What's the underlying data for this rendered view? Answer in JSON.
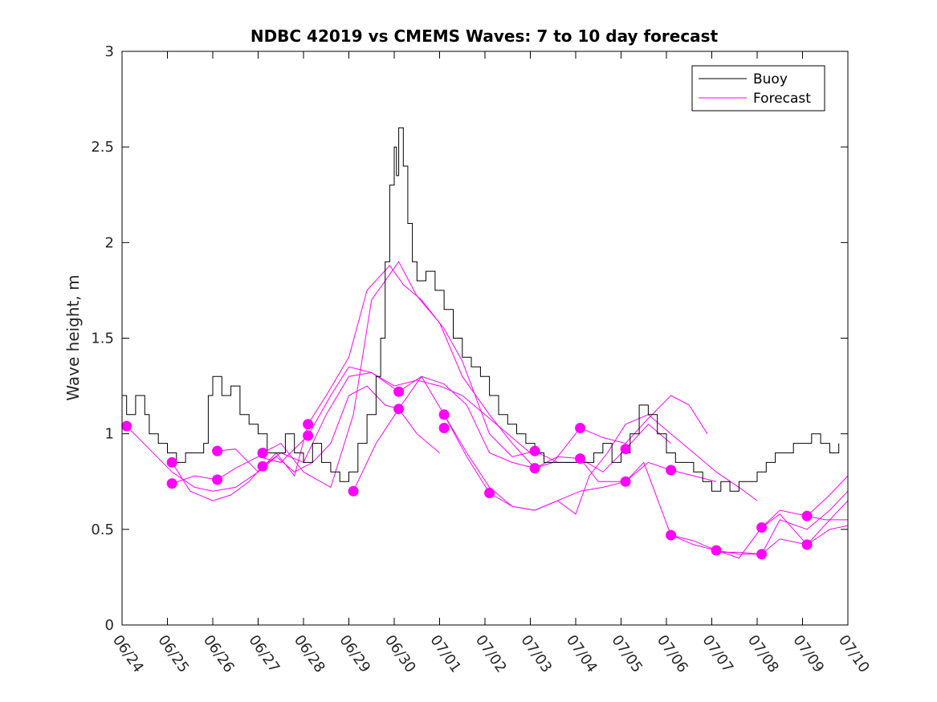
{
  "chart_data": {
    "type": "line",
    "title": "NDBC 42019 vs CMEMS Waves: 7 to 10 day forecast",
    "xlabel": "",
    "ylabel": "Wave height, m",
    "ylim": [
      0,
      3
    ],
    "yticks": [
      "0",
      "0.5",
      "1",
      "1.5",
      "2",
      "2.5",
      "3"
    ],
    "xlim": [
      "06/24",
      "07/10"
    ],
    "xticks": [
      "06/24",
      "06/25",
      "06/26",
      "06/27",
      "06/28",
      "06/29",
      "06/30",
      "07/01",
      "07/02",
      "07/03",
      "07/04",
      "07/05",
      "07/06",
      "07/07",
      "07/08",
      "07/09",
      "07/10"
    ],
    "grid": false,
    "legend": {
      "position": "top-right",
      "entries": [
        "Buoy",
        "Forecast"
      ]
    },
    "colors": {
      "buoy": "#000000",
      "forecast": "#ff00ff"
    },
    "series": [
      {
        "name": "Buoy",
        "color": "#000000",
        "points": [
          [
            0,
            1.2
          ],
          [
            0.1,
            1.1
          ],
          [
            0.3,
            1.2
          ],
          [
            0.5,
            1.1
          ],
          [
            0.6,
            1.0
          ],
          [
            0.8,
            0.95
          ],
          [
            1.0,
            0.9
          ],
          [
            1.2,
            0.85
          ],
          [
            1.4,
            0.9
          ],
          [
            1.6,
            0.9
          ],
          [
            1.8,
            0.95
          ],
          [
            1.9,
            1.2
          ],
          [
            2.0,
            1.3
          ],
          [
            2.2,
            1.2
          ],
          [
            2.4,
            1.25
          ],
          [
            2.6,
            1.1
          ],
          [
            2.8,
            1.05
          ],
          [
            3.0,
            1.0
          ],
          [
            3.2,
            0.9
          ],
          [
            3.4,
            0.9
          ],
          [
            3.6,
            1.0
          ],
          [
            3.8,
            0.9
          ],
          [
            4.0,
            0.85
          ],
          [
            4.2,
            0.95
          ],
          [
            4.4,
            0.85
          ],
          [
            4.6,
            0.8
          ],
          [
            4.8,
            0.75
          ],
          [
            5.0,
            0.8
          ],
          [
            5.2,
            0.95
          ],
          [
            5.4,
            1.1
          ],
          [
            5.6,
            1.3
          ],
          [
            5.7,
            1.5
          ],
          [
            5.8,
            1.9
          ],
          [
            5.9,
            2.3
          ],
          [
            6.0,
            2.5
          ],
          [
            6.05,
            2.35
          ],
          [
            6.1,
            2.6
          ],
          [
            6.2,
            2.4
          ],
          [
            6.3,
            2.1
          ],
          [
            6.4,
            1.9
          ],
          [
            6.5,
            1.8
          ],
          [
            6.7,
            1.85
          ],
          [
            6.9,
            1.75
          ],
          [
            7.1,
            1.65
          ],
          [
            7.3,
            1.5
          ],
          [
            7.5,
            1.4
          ],
          [
            7.7,
            1.35
          ],
          [
            7.9,
            1.3
          ],
          [
            8.1,
            1.2
          ],
          [
            8.3,
            1.1
          ],
          [
            8.5,
            1.05
          ],
          [
            8.7,
            1.0
          ],
          [
            8.9,
            0.95
          ],
          [
            9.1,
            0.9
          ],
          [
            9.3,
            0.85
          ],
          [
            9.6,
            0.85
          ],
          [
            9.9,
            0.85
          ],
          [
            10.2,
            0.85
          ],
          [
            10.4,
            0.9
          ],
          [
            10.6,
            0.95
          ],
          [
            10.8,
            0.85
          ],
          [
            11.0,
            0.9
          ],
          [
            11.2,
            1.0
          ],
          [
            11.4,
            1.15
          ],
          [
            11.6,
            1.1
          ],
          [
            11.8,
            1.0
          ],
          [
            12.0,
            0.9
          ],
          [
            12.2,
            0.85
          ],
          [
            12.4,
            0.85
          ],
          [
            12.6,
            0.8
          ],
          [
            12.8,
            0.75
          ],
          [
            13.0,
            0.7
          ],
          [
            13.2,
            0.75
          ],
          [
            13.4,
            0.7
          ],
          [
            13.6,
            0.75
          ],
          [
            13.8,
            0.75
          ],
          [
            14.0,
            0.8
          ],
          [
            14.2,
            0.85
          ],
          [
            14.4,
            0.9
          ],
          [
            14.6,
            0.9
          ],
          [
            14.8,
            0.95
          ],
          [
            15.0,
            0.95
          ],
          [
            15.2,
            1.0
          ],
          [
            15.4,
            0.95
          ],
          [
            15.6,
            0.9
          ],
          [
            15.8,
            0.95
          ]
        ]
      },
      {
        "name": "Forecast",
        "color": "#ff00ff",
        "points": [
          [
            0.1,
            1.04
          ],
          [
            0.6,
            0.92
          ],
          [
            1.1,
            0.8
          ],
          [
            1.6,
            0.72
          ],
          [
            2.0,
            0.7
          ],
          [
            2.5,
            0.72
          ],
          [
            3.0,
            0.8
          ],
          [
            3.4,
            0.88
          ],
          [
            3.8,
            0.8
          ],
          [
            4.2,
            0.85
          ],
          [
            4.6,
            0.95
          ],
          [
            5.0,
            1.2
          ],
          [
            5.4,
            1.25
          ],
          [
            5.8,
            1.15
          ],
          [
            6.1,
            1.13
          ],
          [
            6.5,
            1.0
          ],
          [
            7.0,
            0.9
          ]
        ]
      },
      {
        "name": "Forecast",
        "color": "#ff00ff",
        "points": [
          [
            1.1,
            0.85
          ],
          [
            1.5,
            0.7
          ],
          [
            2.0,
            0.65
          ],
          [
            2.4,
            0.68
          ],
          [
            2.8,
            0.75
          ],
          [
            3.1,
            0.83
          ],
          [
            3.5,
            0.9
          ],
          [
            4.0,
            0.85
          ],
          [
            4.5,
            1.1
          ],
          [
            5.0,
            1.3
          ],
          [
            5.5,
            1.32
          ],
          [
            6.0,
            1.25
          ],
          [
            6.5,
            1.28
          ],
          [
            7.0,
            1.25
          ],
          [
            7.5,
            1.2
          ],
          [
            8.0,
            1.1
          ],
          [
            8.5,
            1.0
          ],
          [
            9.0,
            0.9
          ]
        ]
      },
      {
        "name": "Forecast",
        "color": "#ff00ff",
        "points": [
          [
            1.1,
            0.74
          ],
          [
            1.6,
            0.78
          ],
          [
            2.1,
            0.76
          ],
          [
            2.5,
            0.82
          ],
          [
            3.0,
            0.88
          ],
          [
            3.5,
            0.85
          ],
          [
            4.1,
            0.99
          ],
          [
            4.6,
            1.2
          ],
          [
            5.0,
            1.35
          ],
          [
            5.5,
            1.32
          ],
          [
            6.1,
            1.22
          ],
          [
            6.6,
            1.3
          ],
          [
            7.1,
            1.26
          ],
          [
            7.6,
            1.15
          ],
          [
            8.1,
            0.9
          ],
          [
            8.6,
            0.85
          ],
          [
            9.1,
            0.82
          ]
        ]
      },
      {
        "name": "Forecast",
        "color": "#ff00ff",
        "points": [
          [
            2.1,
            0.91
          ],
          [
            2.5,
            0.92
          ],
          [
            3.0,
            0.8
          ],
          [
            3.4,
            0.9
          ],
          [
            3.8,
            0.78
          ],
          [
            4.1,
            1.05
          ],
          [
            4.5,
            1.2
          ],
          [
            5.0,
            1.4
          ],
          [
            5.4,
            1.75
          ],
          [
            5.9,
            1.88
          ],
          [
            6.2,
            1.78
          ],
          [
            6.6,
            1.7
          ],
          [
            7.1,
            1.55
          ],
          [
            7.5,
            1.38
          ],
          [
            8.1,
            1.0
          ],
          [
            8.6,
            0.88
          ],
          [
            9.1,
            0.91
          ],
          [
            9.6,
            0.85
          ],
          [
            10.1,
            0.85
          ]
        ]
      },
      {
        "name": "Forecast",
        "color": "#ff00ff",
        "points": [
          [
            3.1,
            0.9
          ],
          [
            3.5,
            0.95
          ],
          [
            4.0,
            0.8
          ],
          [
            4.6,
            0.72
          ],
          [
            5.1,
            1.1
          ],
          [
            5.5,
            1.7
          ],
          [
            6.1,
            1.9
          ],
          [
            6.5,
            1.72
          ],
          [
            7.0,
            1.58
          ],
          [
            7.5,
            1.3
          ],
          [
            8.1,
            1.1
          ],
          [
            8.6,
            0.95
          ],
          [
            9.1,
            0.82
          ],
          [
            9.6,
            0.88
          ],
          [
            10.1,
            0.87
          ],
          [
            10.6,
            0.8
          ],
          [
            11.1,
            0.92
          ],
          [
            11.6,
            1.05
          ],
          [
            12.1,
            0.95
          ]
        ]
      },
      {
        "name": "Forecast",
        "color": "#ff00ff",
        "points": [
          [
            5.1,
            0.7
          ],
          [
            5.6,
            0.95
          ],
          [
            6.1,
            1.13
          ],
          [
            6.6,
            1.3
          ],
          [
            7.1,
            1.1
          ],
          [
            7.6,
            0.88
          ],
          [
            8.1,
            0.69
          ],
          [
            8.6,
            0.62
          ],
          [
            9.1,
            0.6
          ],
          [
            9.6,
            0.65
          ],
          [
            10.1,
            0.7
          ],
          [
            10.6,
            0.72
          ],
          [
            11.1,
            0.75
          ],
          [
            11.6,
            0.85
          ],
          [
            12.1,
            0.81
          ],
          [
            12.6,
            0.78
          ],
          [
            13.1,
            0.75
          ]
        ]
      },
      {
        "name": "Forecast",
        "color": "#ff00ff",
        "points": [
          [
            7.1,
            1.1
          ],
          [
            7.6,
            0.9
          ],
          [
            8.1,
            0.72
          ],
          [
            8.6,
            0.62
          ],
          [
            9.1,
            0.6
          ],
          [
            9.6,
            0.65
          ],
          [
            10.0,
            0.58
          ],
          [
            10.3,
            0.78
          ],
          [
            10.7,
            0.9
          ],
          [
            11.1,
            1.05
          ],
          [
            11.6,
            1.1
          ],
          [
            12.1,
            1.0
          ],
          [
            12.6,
            0.9
          ],
          [
            13.1,
            0.8
          ],
          [
            13.6,
            0.72
          ],
          [
            14.0,
            0.65
          ]
        ]
      },
      {
        "name": "Forecast",
        "color": "#ff00ff",
        "points": [
          [
            9.1,
            0.82
          ],
          [
            9.5,
            0.85
          ],
          [
            10.1,
            1.03
          ],
          [
            10.6,
            0.98
          ],
          [
            11.1,
            0.95
          ],
          [
            11.6,
            1.08
          ],
          [
            12.1,
            1.2
          ],
          [
            12.5,
            1.15
          ],
          [
            12.9,
            1.0
          ]
        ]
      },
      {
        "name": "Forecast",
        "color": "#ff00ff",
        "points": [
          [
            10.1,
            0.87
          ],
          [
            10.5,
            0.75
          ],
          [
            11.1,
            0.75
          ],
          [
            11.5,
            0.85
          ],
          [
            12.1,
            0.47
          ],
          [
            12.6,
            0.42
          ],
          [
            13.1,
            0.39
          ],
          [
            13.6,
            0.37
          ],
          [
            14.1,
            0.37
          ],
          [
            14.5,
            0.45
          ],
          [
            15.1,
            0.42
          ],
          [
            15.6,
            0.5
          ],
          [
            16.0,
            0.52
          ]
        ]
      },
      {
        "name": "Forecast",
        "color": "#ff00ff",
        "points": [
          [
            12.1,
            0.47
          ],
          [
            12.6,
            0.44
          ],
          [
            13.1,
            0.39
          ],
          [
            13.6,
            0.35
          ],
          [
            14.1,
            0.51
          ],
          [
            14.5,
            0.6
          ],
          [
            15.1,
            0.57
          ],
          [
            15.6,
            0.68
          ],
          [
            16.0,
            0.78
          ]
        ]
      },
      {
        "name": "Forecast",
        "color": "#ff00ff",
        "points": [
          [
            13.1,
            0.38
          ],
          [
            13.6,
            0.38
          ],
          [
            14.1,
            0.37
          ],
          [
            14.5,
            0.55
          ],
          [
            15.1,
            0.5
          ],
          [
            15.6,
            0.6
          ],
          [
            16.0,
            0.7
          ]
        ]
      },
      {
        "name": "Forecast",
        "color": "#ff00ff",
        "points": [
          [
            14.1,
            0.51
          ],
          [
            14.5,
            0.58
          ],
          [
            15.1,
            0.42
          ],
          [
            15.6,
            0.55
          ],
          [
            16.0,
            0.65
          ]
        ]
      },
      {
        "name": "Forecast",
        "color": "#ff00ff",
        "points": [
          [
            15.1,
            0.57
          ],
          [
            15.5,
            0.55
          ],
          [
            16.0,
            0.55
          ]
        ]
      }
    ],
    "forecast_start_points": [
      [
        0.1,
        1.04
      ],
      [
        1.1,
        0.85
      ],
      [
        1.1,
        0.74
      ],
      [
        2.1,
        0.91
      ],
      [
        2.1,
        0.76
      ],
      [
        3.1,
        0.9
      ],
      [
        3.1,
        0.83
      ],
      [
        4.1,
        1.05
      ],
      [
        4.1,
        0.99
      ],
      [
        5.1,
        0.7
      ],
      [
        6.1,
        1.22
      ],
      [
        6.1,
        1.13
      ],
      [
        7.1,
        1.1
      ],
      [
        7.1,
        1.03
      ],
      [
        8.1,
        0.69
      ],
      [
        9.1,
        0.91
      ],
      [
        9.1,
        0.82
      ],
      [
        10.1,
        1.03
      ],
      [
        10.1,
        0.87
      ],
      [
        11.1,
        0.92
      ],
      [
        11.1,
        0.75
      ],
      [
        12.1,
        0.81
      ],
      [
        12.1,
        0.47
      ],
      [
        13.1,
        0.39
      ],
      [
        14.1,
        0.51
      ],
      [
        14.1,
        0.37
      ],
      [
        15.1,
        0.57
      ],
      [
        15.1,
        0.42
      ]
    ]
  }
}
